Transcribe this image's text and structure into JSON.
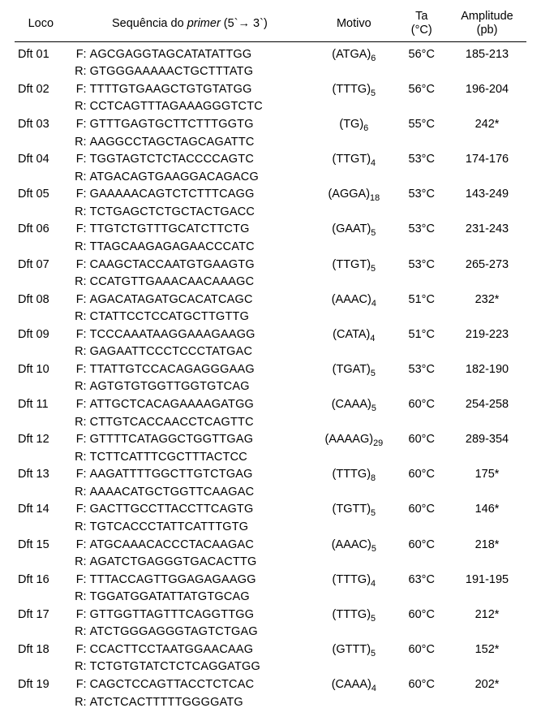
{
  "columns": {
    "loco": "Loco",
    "seq": "Sequência do <span class=\"primer-word\">primer</span> (5`→ 3`)",
    "motivo": "Motivo",
    "ta": "Ta<br>(°C)",
    "amp": "Amplitude<br>(pb)"
  },
  "rows": [
    {
      "loco": "Dft 01",
      "f": "AGCGAGGTAGCATATATTGG",
      "r": "GTGGGAAAAACTGCTTTATG",
      "motivo": "(ATGA)<sub>6</sub>",
      "ta": "56°C",
      "amp": "185-213"
    },
    {
      "loco": "Dft 02",
      "f": "TTTTGTGAAGCTGTGTATGG",
      "r": "CCTCAGTTTAGAAAGGGTCTC",
      "motivo": "(TTTG)<sub>5</sub>",
      "ta": "56°C",
      "amp": "196-204"
    },
    {
      "loco": "Dft 03",
      "f": "GTTTGAGTGCTTCTTTGGTG",
      "r": "AAGGCCTAGCTAGCAGATTC",
      "motivo": "(TG)<sub>6</sub>",
      "ta": "55°C",
      "amp": "242*"
    },
    {
      "loco": "Dft 04",
      "f": "TGGTAGTCTCTACCCCAGTC",
      "r": "ATGACAGTGAAGGACAGACG",
      "motivo": "(TTGT)<sub>4</sub>",
      "ta": "53°C",
      "amp": "174-176"
    },
    {
      "loco": "Dft 05",
      "f": "GAAAAACAGTCTCTTTCAGG",
      "r": "TCTGAGCTCTGCTACTGACC",
      "motivo": "(AGGA)<sub>18</sub>",
      "ta": "53°C",
      "amp": "143-249"
    },
    {
      "loco": "Dft 06",
      "f": "TTGTCTGTTTGCATCTTCTG",
      "r": "TTAGCAAGAGAGAACCCATC",
      "motivo": "(GAAT)<sub>5</sub>",
      "ta": "53°C",
      "amp": "231-243"
    },
    {
      "loco": "Dft 07",
      "f": "CAAGCTACCAATGTGAAGTG",
      "r": "CCATGTTGAAACAACAAAGC",
      "motivo": "(TTGT)<sub>5</sub>",
      "ta": "53°C",
      "amp": "265-273"
    },
    {
      "loco": "Dft 08",
      "f": "AGACATAGATGCACATCAGC",
      "r": "CTATTCCTCCATGCTTGTTG",
      "motivo": "(AAAC)<sub>4</sub>",
      "ta": "51°C",
      "amp": "232*"
    },
    {
      "loco": "Dft 09",
      "f": "TCCCAAATAAGGAAAGAAGG",
      "r": "GAGAATTCCCTCCCTATGAC",
      "motivo": "(CATA)<sub>4</sub>",
      "ta": "51°C",
      "amp": "219-223"
    },
    {
      "loco": "Dft 10",
      "f": "TTATTGTCCACAGAGGGAAG",
      "r": "AGTGTGTGGTTGGTGTCAG",
      "motivo": "(TGAT)<sub>5</sub>",
      "ta": "53°C",
      "amp": "182-190"
    },
    {
      "loco": "Dft 11",
      "f": "ATTGCTCACAGAAAAGATGG",
      "r": "CTTGTCACCAACCTCAGTTC",
      "motivo": "(CAAA)<sub>5</sub>",
      "ta": "60°C",
      "amp": "254-258"
    },
    {
      "loco": "Dft 12",
      "f": "GTTTTCATAGGCTGGTTGAG",
      "r": "TCTTCATTTCGCTTTACTCC",
      "motivo": "(AAAAG)<sub>29</sub>",
      "ta": "60°C",
      "amp": "289-354"
    },
    {
      "loco": "Dft 13",
      "f": "AAGATTTTGGCTTGTCTGAG",
      "r": "AAAACATGCTGGTTCAAGAC",
      "motivo": "(TTTG)<sub>8</sub>",
      "ta": "60°C",
      "amp": "175*"
    },
    {
      "loco": "Dft 14",
      "f": "GACTTGCCTTACCTTCAGTG",
      "r": "TGTCACCCTATTCATTTGTG",
      "motivo": "(TGTT)<sub>5</sub>",
      "ta": "60°C",
      "amp": "146*"
    },
    {
      "loco": "Dft 15",
      "f": "ATGCAAACACCCTACAAGAC",
      "r": "AGATCTGAGGGTGACACTTG",
      "motivo": "(AAAC)<sub>5</sub>",
      "ta": "60°C",
      "amp": "218*"
    },
    {
      "loco": "Dft 16",
      "f": "TTTACCAGTTGGAGAGAAGG",
      "r": "TGGATGGATATTATGTGCAG",
      "motivo": "(TTTG)<sub>4</sub>",
      "ta": "63°C",
      "amp": "191-195"
    },
    {
      "loco": "Dft 17",
      "f": "GTTGGTTAGTTTCAGGTTGG",
      "r": "ATCTGGGAGGGTAGTCTGAG",
      "motivo": "(TTTG)<sub>5</sub>",
      "ta": "60°C",
      "amp": "212*"
    },
    {
      "loco": "Dft 18",
      "f": "CCACTTCCTAATGGAACAAG",
      "r": "TCTGTGTATCTCTCAGGATGG",
      "motivo": "(GTTT)<sub>5</sub>",
      "ta": "60°C",
      "amp": "152*"
    },
    {
      "loco": "Dft 19",
      "f": "CAGCTCCAGTTACCTCTCAC",
      "r": "ATCTCACTTTTTGGGGATG",
      "motivo": "(CAAA)<sub>4</sub>",
      "ta": "60°C",
      "amp": "202*"
    }
  ]
}
